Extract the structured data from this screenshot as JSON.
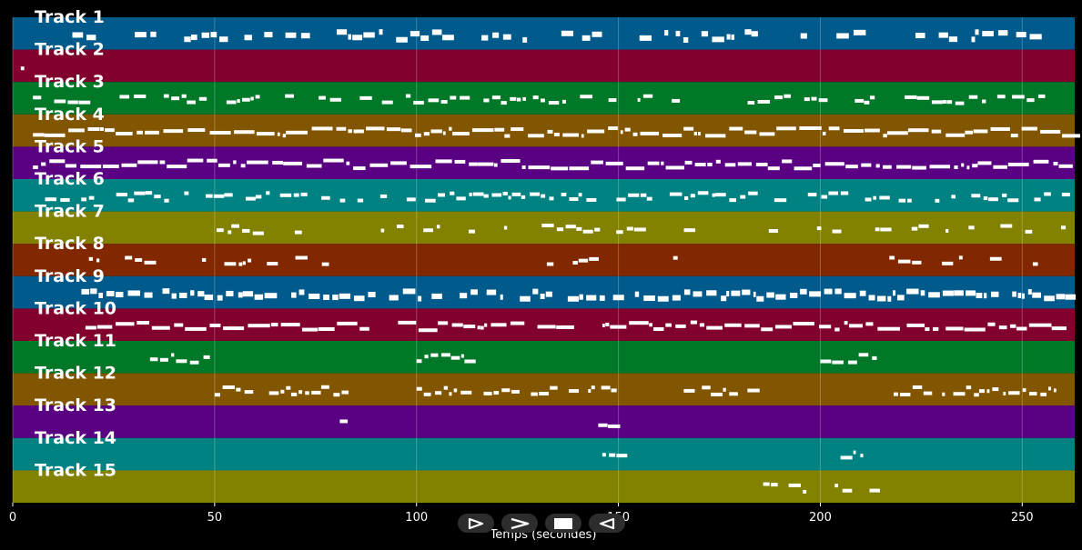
{
  "chart_data": {
    "type": "piano-roll",
    "xlabel": "Temps (secondes)",
    "xlim": [
      0,
      263
    ],
    "x_ticks": [
      0,
      50,
      100,
      150,
      200,
      250
    ],
    "grid": true,
    "tracks": [
      {
        "name": "Track 1",
        "color": "#005a8c"
      },
      {
        "name": "Track 2",
        "color": "#82002d"
      },
      {
        "name": "Track 3",
        "color": "#007828"
      },
      {
        "name": "Track 4",
        "color": "#825500"
      },
      {
        "name": "Track 5",
        "color": "#5a0082"
      },
      {
        "name": "Track 6",
        "color": "#008282"
      },
      {
        "name": "Track 7",
        "color": "#828200"
      },
      {
        "name": "Track 8",
        "color": "#822800"
      },
      {
        "name": "Track 9",
        "color": "#005a8c"
      },
      {
        "name": "Track 10",
        "color": "#82002d"
      },
      {
        "name": "Track 11",
        "color": "#007828"
      },
      {
        "name": "Track 12",
        "color": "#825500"
      },
      {
        "name": "Track 13",
        "color": "#5a0082"
      },
      {
        "name": "Track 14",
        "color": "#008282"
      },
      {
        "name": "Track 15",
        "color": "#828200"
      }
    ]
  },
  "controls": {
    "play_icon": "play-icon",
    "fast_forward_icon": "fast-forward-icon",
    "stop_icon": "stop-icon",
    "rewind_icon": "rewind-icon"
  }
}
